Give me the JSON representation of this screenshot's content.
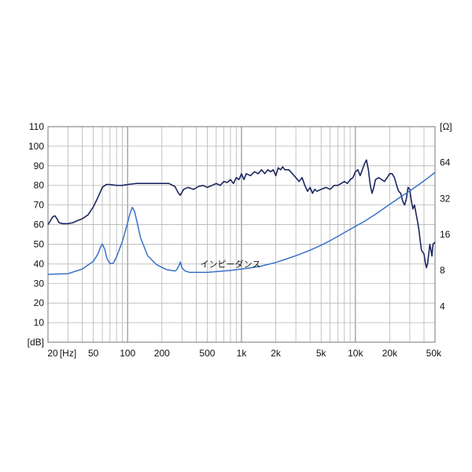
{
  "chart_data": {
    "type": "line",
    "x_scale": "log",
    "grid": true,
    "legend": "none",
    "x_range": [
      20,
      50000
    ],
    "y_range_left": [
      0,
      110
    ],
    "y_range_right_log2": [
      2,
      128
    ],
    "x_ticks": [
      {
        "value": 20,
        "label": "20"
      },
      {
        "value": 30,
        "label": "[Hz]"
      },
      {
        "value": 50,
        "label": "50"
      },
      {
        "value": 100,
        "label": "100"
      },
      {
        "value": 200,
        "label": "200"
      },
      {
        "value": 500,
        "label": "500"
      },
      {
        "value": 1000,
        "label": "1k"
      },
      {
        "value": 2000,
        "label": "2k"
      },
      {
        "value": 5000,
        "label": "5k"
      },
      {
        "value": 10000,
        "label": "10k"
      },
      {
        "value": 20000,
        "label": "20k"
      },
      {
        "value": 50000,
        "label": "50k"
      }
    ],
    "y_left_ticks": [
      {
        "value": 110,
        "label": "110"
      },
      {
        "value": 100,
        "label": "100"
      },
      {
        "value": 90,
        "label": "90"
      },
      {
        "value": 80,
        "label": "80"
      },
      {
        "value": 70,
        "label": "70"
      },
      {
        "value": 60,
        "label": "60"
      },
      {
        "value": 50,
        "label": "50"
      },
      {
        "value": 40,
        "label": "40"
      },
      {
        "value": 30,
        "label": "30"
      },
      {
        "value": 20,
        "label": "20"
      },
      {
        "value": 10,
        "label": "10"
      },
      {
        "value": 0,
        "label": "[dB]"
      }
    ],
    "y_right_ticks": [
      {
        "value": 128,
        "label": "[Ω]"
      },
      {
        "value": 64,
        "label": "64"
      },
      {
        "value": 32,
        "label": "32"
      },
      {
        "value": 16,
        "label": "16"
      },
      {
        "value": 8,
        "label": "8"
      },
      {
        "value": 4,
        "label": "4"
      }
    ],
    "annotation": {
      "text": "インピーダンス",
      "x": 800,
      "y": 36
    },
    "colors": {
      "spl": "#1c2760",
      "impedance": "#3a72c8",
      "grid": "#b5b5b5",
      "axis": "#777777"
    },
    "series": [
      {
        "axis": "left",
        "points": [
          [
            20,
            60
          ],
          [
            21,
            62
          ],
          [
            22,
            64
          ],
          [
            23,
            64.5
          ],
          [
            24,
            63
          ],
          [
            25,
            61
          ],
          [
            27,
            60.5
          ],
          [
            30,
            60.5
          ],
          [
            33,
            61
          ],
          [
            36,
            62
          ],
          [
            40,
            63
          ],
          [
            45,
            65
          ],
          [
            50,
            69
          ],
          [
            55,
            74
          ],
          [
            60,
            79
          ],
          [
            65,
            80.5
          ],
          [
            70,
            80.5
          ],
          [
            80,
            80
          ],
          [
            90,
            80
          ],
          [
            100,
            80.5
          ],
          [
            120,
            81
          ],
          [
            150,
            81
          ],
          [
            180,
            81
          ],
          [
            200,
            81
          ],
          [
            230,
            81
          ],
          [
            260,
            79.5
          ],
          [
            280,
            76
          ],
          [
            290,
            75
          ],
          [
            310,
            78
          ],
          [
            340,
            79
          ],
          [
            380,
            78
          ],
          [
            420,
            79.5
          ],
          [
            460,
            80
          ],
          [
            500,
            79
          ],
          [
            550,
            80
          ],
          [
            600,
            81
          ],
          [
            650,
            80
          ],
          [
            700,
            82
          ],
          [
            750,
            81.5
          ],
          [
            800,
            83
          ],
          [
            850,
            81
          ],
          [
            900,
            84
          ],
          [
            950,
            83
          ],
          [
            1000,
            86
          ],
          [
            1050,
            83
          ],
          [
            1100,
            86
          ],
          [
            1200,
            85
          ],
          [
            1300,
            87
          ],
          [
            1400,
            86
          ],
          [
            1500,
            88
          ],
          [
            1600,
            86
          ],
          [
            1700,
            88
          ],
          [
            1800,
            87
          ],
          [
            1900,
            88
          ],
          [
            2000,
            85
          ],
          [
            2100,
            89
          ],
          [
            2200,
            88
          ],
          [
            2300,
            89.5
          ],
          [
            2400,
            88
          ],
          [
            2600,
            88
          ],
          [
            2800,
            86
          ],
          [
            3000,
            84
          ],
          [
            3200,
            82
          ],
          [
            3400,
            84
          ],
          [
            3600,
            80
          ],
          [
            3800,
            77
          ],
          [
            4000,
            79
          ],
          [
            4200,
            76
          ],
          [
            4400,
            78
          ],
          [
            4600,
            77
          ],
          [
            5000,
            78
          ],
          [
            5500,
            79
          ],
          [
            6000,
            78
          ],
          [
            6500,
            80
          ],
          [
            7000,
            80
          ],
          [
            7500,
            81
          ],
          [
            8000,
            82
          ],
          [
            8500,
            81
          ],
          [
            9000,
            83
          ],
          [
            9500,
            84
          ],
          [
            10000,
            87
          ],
          [
            10500,
            88
          ],
          [
            11000,
            85
          ],
          [
            11500,
            88
          ],
          [
            12000,
            91
          ],
          [
            12500,
            93
          ],
          [
            13000,
            88
          ],
          [
            13500,
            80
          ],
          [
            14000,
            76
          ],
          [
            14500,
            79
          ],
          [
            15000,
            83
          ],
          [
            16000,
            84
          ],
          [
            17000,
            83
          ],
          [
            18000,
            82
          ],
          [
            19000,
            84
          ],
          [
            20000,
            86
          ],
          [
            21000,
            86
          ],
          [
            22000,
            84
          ],
          [
            23000,
            80
          ],
          [
            24000,
            77
          ],
          [
            25000,
            76
          ],
          [
            26000,
            72
          ],
          [
            27000,
            70
          ],
          [
            28000,
            73
          ],
          [
            29000,
            79
          ],
          [
            30000,
            78
          ],
          [
            31000,
            72
          ],
          [
            32000,
            68
          ],
          [
            33000,
            70
          ],
          [
            34000,
            66
          ],
          [
            35000,
            62
          ],
          [
            36000,
            58
          ],
          [
            37000,
            52
          ],
          [
            38000,
            47
          ],
          [
            40000,
            45
          ],
          [
            41000,
            41
          ],
          [
            42000,
            38
          ],
          [
            43000,
            40
          ],
          [
            44000,
            45
          ],
          [
            45000,
            50
          ],
          [
            46000,
            47
          ],
          [
            47000,
            44
          ],
          [
            48000,
            50
          ],
          [
            50000,
            51
          ]
        ]
      },
      {
        "axis": "right",
        "points": [
          [
            20,
            7.4
          ],
          [
            30,
            7.5
          ],
          [
            40,
            8.2
          ],
          [
            50,
            9.5
          ],
          [
            55,
            11
          ],
          [
            58,
            12.6
          ],
          [
            60,
            13.3
          ],
          [
            63,
            12
          ],
          [
            66,
            10
          ],
          [
            70,
            9.1
          ],
          [
            75,
            9.2
          ],
          [
            80,
            10.4
          ],
          [
            90,
            14
          ],
          [
            100,
            20
          ],
          [
            105,
            24
          ],
          [
            110,
            27
          ],
          [
            115,
            25
          ],
          [
            120,
            21
          ],
          [
            130,
            15
          ],
          [
            150,
            10.6
          ],
          [
            180,
            8.9
          ],
          [
            220,
            8.1
          ],
          [
            260,
            7.9
          ],
          [
            270,
            8.1
          ],
          [
            280,
            8.6
          ],
          [
            290,
            9.4
          ],
          [
            300,
            8.4
          ],
          [
            320,
            7.9
          ],
          [
            350,
            7.7
          ],
          [
            400,
            7.7
          ],
          [
            500,
            7.7
          ],
          [
            600,
            7.8
          ],
          [
            700,
            7.9
          ],
          [
            800,
            8
          ],
          [
            1000,
            8.2
          ],
          [
            1200,
            8.4
          ],
          [
            1500,
            8.7
          ],
          [
            2000,
            9.3
          ],
          [
            2500,
            10
          ],
          [
            3000,
            10.6
          ],
          [
            4000,
            11.8
          ],
          [
            5000,
            13
          ],
          [
            6000,
            14.2
          ],
          [
            7000,
            15.4
          ],
          [
            8000,
            16.6
          ],
          [
            10000,
            18.7
          ],
          [
            12000,
            20.6
          ],
          [
            15000,
            23.6
          ],
          [
            20000,
            28.6
          ],
          [
            25000,
            33
          ],
          [
            30000,
            37
          ],
          [
            35000,
            41
          ],
          [
            40000,
            45
          ],
          [
            45000,
            49
          ],
          [
            50000,
            53
          ]
        ]
      }
    ]
  }
}
